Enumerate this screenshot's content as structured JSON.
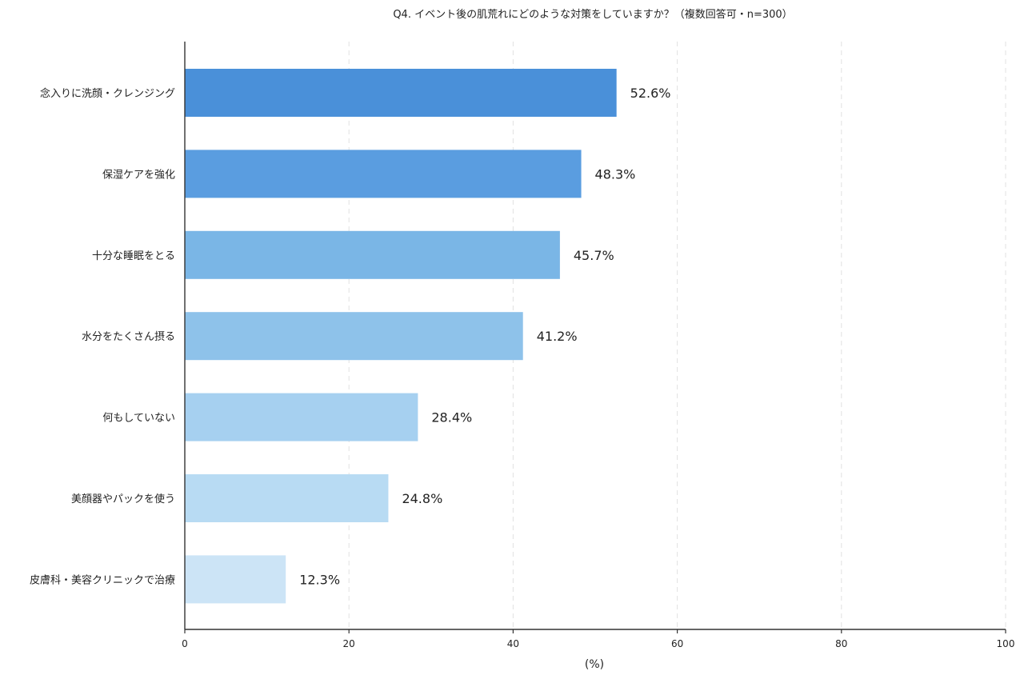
{
  "chart_data": {
    "type": "bar",
    "orientation": "horizontal",
    "title": "Q4. イベント後の肌荒れにどのような対策をしていますか？（複数回答可・n=300）",
    "xlabel": "(%)",
    "ylabel": "",
    "xlim": [
      0,
      100
    ],
    "x_ticks": [
      "0",
      "20",
      "40",
      "60",
      "80",
      "100"
    ],
    "grid": "vertical dashed",
    "legend": "none",
    "categories": [
      "念入りに洗顔・クレンジング",
      "保湿ケアを強化",
      "十分な睡眠をとる",
      "水分をたくさん摂る",
      "何もしていない",
      "美顔器やパックを使う",
      "皮膚科・美容クリニックで治療"
    ],
    "values": [
      52.6,
      48.3,
      45.7,
      41.2,
      28.4,
      24.8,
      12.3
    ],
    "value_labels": [
      "52.6%",
      "48.3%",
      "45.7%",
      "41.2%",
      "28.4%",
      "24.8%",
      "12.3%"
    ],
    "colors": [
      "#4a90d9",
      "#5a9de0",
      "#7ab6e6",
      "#8ec2ea",
      "#a6d0f0",
      "#b8dbf3",
      "#cce4f6"
    ]
  }
}
